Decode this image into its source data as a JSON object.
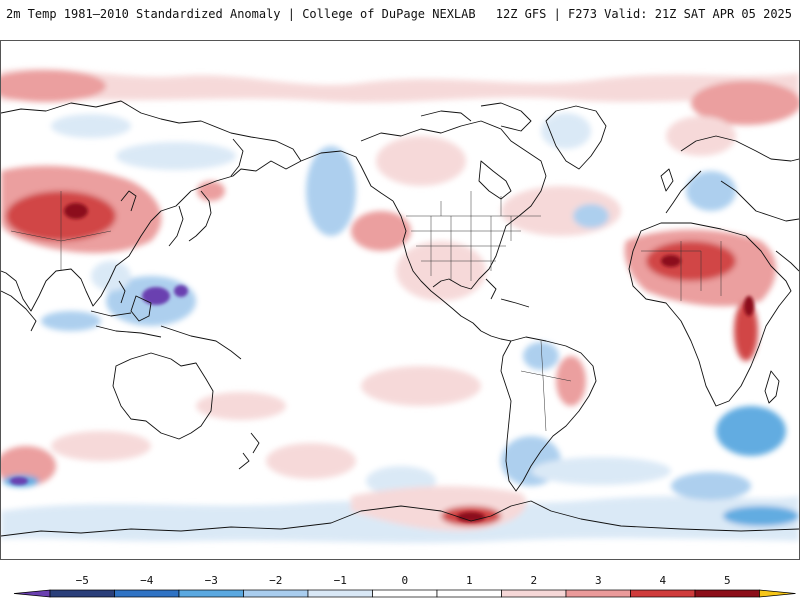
{
  "header": {
    "title": "2m Temp 1981–2010 Standardized Anomaly | College of DuPage NEXLAB",
    "run_info": "12Z GFS | F273 Valid: 21Z SAT APR 05 2025"
  },
  "map": {
    "variable": "2m temperature standardized anomaly",
    "projection": "equirectangular",
    "center_longitude": -120
  },
  "colorbar": {
    "ticks": [
      "−5",
      "−4",
      "−3",
      "−2",
      "−1",
      "0",
      "1",
      "2",
      "3",
      "4",
      "5"
    ],
    "tick_values": [
      -5,
      -4,
      -3,
      -2,
      -1,
      0,
      1,
      2,
      3,
      4,
      5
    ],
    "segment_colors": [
      "#2a3f7a",
      "#2f73c4",
      "#5aa8e0",
      "#a9cdee",
      "#d9e8f6",
      "#ffffff",
      "#ffffff",
      "#f6d8d8",
      "#ea9a9a",
      "#cf3c3c",
      "#8c0f1a"
    ],
    "low_end_color": "#6a3fb0",
    "high_end_color": "#f5c518"
  }
}
